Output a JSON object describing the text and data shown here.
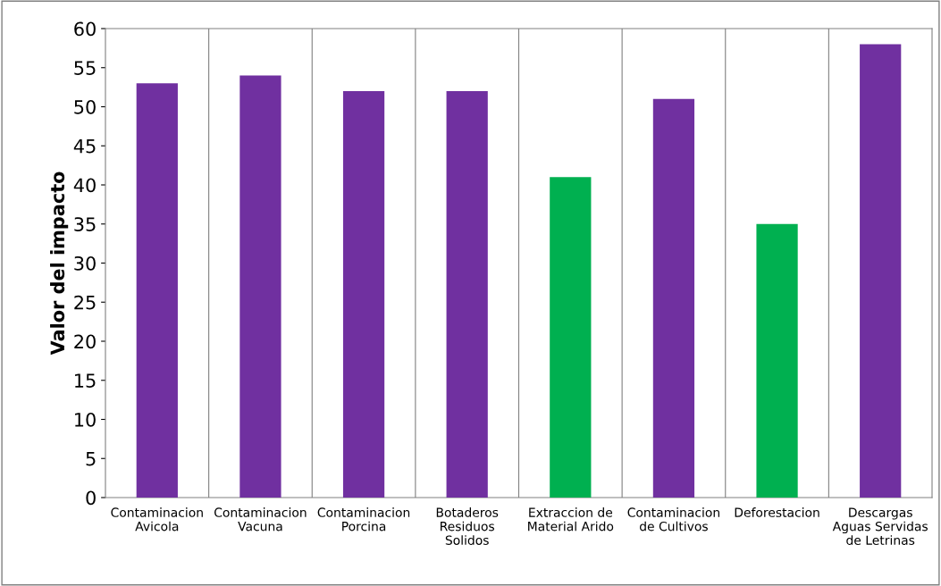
{
  "chart_data": {
    "type": "bar",
    "ylabel": "Valor del impacto",
    "categories": [
      "Contaminacion\nAvicola",
      "Contaminacion\nVacuna",
      "Contaminacion\nPorcina",
      "Botaderos\nResiduos\nSolidos",
      "Extraccion de\nMaterial Arido",
      "Contaminacion\nde Cultivos",
      "Deforestacion",
      "Descargas\nAguas Servidas\nde Letrinas"
    ],
    "values": [
      53,
      54,
      52,
      52,
      41,
      51,
      35,
      58
    ],
    "colors": [
      "#7030a0",
      "#7030a0",
      "#7030a0",
      "#7030a0",
      "#00b050",
      "#7030a0",
      "#00b050",
      "#7030a0"
    ],
    "ylim": [
      0,
      60
    ],
    "yticks": [
      0,
      5,
      10,
      15,
      20,
      25,
      30,
      35,
      40,
      45,
      50,
      55,
      60
    ],
    "grid": "x",
    "legend": false
  }
}
